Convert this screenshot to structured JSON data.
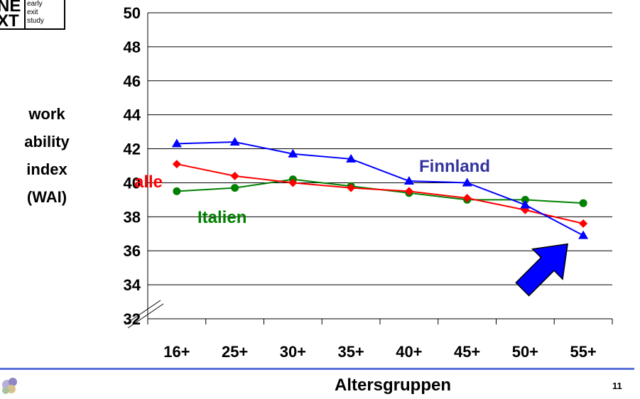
{
  "logo": {
    "big_lines": [
      "NE",
      "XT"
    ],
    "small_lines": [
      "early",
      "exit",
      "study"
    ]
  },
  "page_number": "11",
  "colors": {
    "alle": "#ff0000",
    "finnland": "#0000ff",
    "finnland_label": "#3333a0",
    "italien": "#008000",
    "arrow": "#0000ff",
    "rule": "#5b6fd8"
  },
  "chart_data": {
    "type": "line",
    "xlabel": "Altersgruppen",
    "ylabel_lines": [
      "work",
      "ability",
      "index",
      "(WAI)"
    ],
    "categories": [
      "16+",
      "25+",
      "30+",
      "35+",
      "40+",
      "45+",
      "50+",
      "55+"
    ],
    "y_ticks": [
      32,
      34,
      36,
      38,
      40,
      42,
      44,
      46,
      48,
      50
    ],
    "ylim": [
      32,
      50
    ],
    "y_axis_break": true,
    "grid": true,
    "series": [
      {
        "name": "alle",
        "marker": "diamond",
        "color": "#ff0000",
        "values": [
          41.1,
          40.4,
          40.0,
          39.7,
          39.5,
          39.1,
          38.4,
          37.6
        ]
      },
      {
        "name": "Finnland",
        "marker": "triangle",
        "color": "#0000ff",
        "values": [
          42.3,
          42.4,
          41.7,
          41.4,
          40.1,
          40.0,
          38.7,
          36.9
        ]
      },
      {
        "name": "Italien",
        "marker": "circle",
        "color": "#008000",
        "values": [
          39.5,
          39.7,
          40.2,
          39.8,
          39.4,
          39.0,
          39.0,
          38.8
        ]
      }
    ],
    "annotations": [
      {
        "type": "arrow",
        "points_to_category": "55+",
        "points_to_series": "Finnland"
      }
    ]
  }
}
